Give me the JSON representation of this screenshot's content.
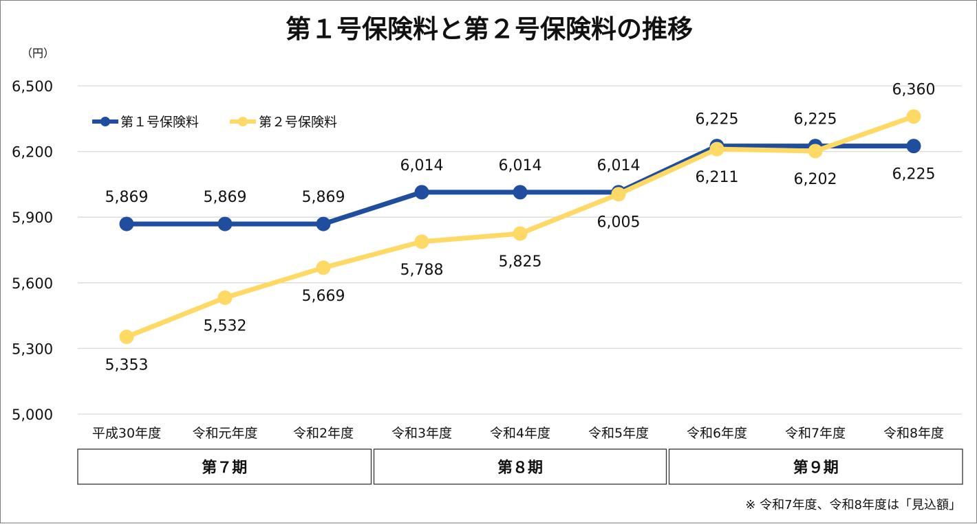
{
  "chart_data": {
    "type": "line",
    "title": "第１号保険料と第２号保険料の推移",
    "unit_label": "（円）",
    "ylim": [
      5000,
      6500
    ],
    "yticks": [
      {
        "value": 5000,
        "label": "5,000"
      },
      {
        "value": 5300,
        "label": "5,300"
      },
      {
        "value": 5600,
        "label": "5,600"
      },
      {
        "value": 5900,
        "label": "5,900"
      },
      {
        "value": 6200,
        "label": "6,200"
      },
      {
        "value": 6500,
        "label": "6,500"
      }
    ],
    "grid": true,
    "legend_position": "top-left",
    "categories": [
      "平成30年度",
      "令和元年度",
      "令和2年度",
      "令和3年度",
      "令和4年度",
      "令和5年度",
      "令和6年度",
      "令和7年度",
      "令和8年度"
    ],
    "series": [
      {
        "name": "第１号保険料",
        "color": "#1f4e9f",
        "values": [
          5869,
          5869,
          5869,
          6014,
          6014,
          6014,
          6225,
          6225,
          6225
        ],
        "labels": [
          "5,869",
          "5,869",
          "5,869",
          "6,014",
          "6,014",
          "6,014",
          "6,225",
          "6,225",
          "6,225"
        ],
        "label_positions": [
          "above",
          "above",
          "above",
          "above",
          "above",
          "above",
          "above",
          "above",
          "below"
        ]
      },
      {
        "name": "第２号保険料",
        "color": "#ffd966",
        "values": [
          5353,
          5532,
          5669,
          5788,
          5825,
          6005,
          6211,
          6202,
          6360
        ],
        "labels": [
          "5,353",
          "5,532",
          "5,669",
          "5,788",
          "5,825",
          "6,005",
          "6,211",
          "6,202",
          "6,360"
        ],
        "label_positions": [
          "below",
          "below",
          "below",
          "below",
          "below",
          "below",
          "below",
          "below",
          "above"
        ]
      }
    ],
    "periods": [
      {
        "label": "第７期",
        "span": [
          0,
          2
        ]
      },
      {
        "label": "第８期",
        "span": [
          3,
          5
        ]
      },
      {
        "label": "第９期",
        "span": [
          6,
          8
        ]
      }
    ],
    "note": "※ 令和7年度、令和8年度は「見込額」"
  }
}
